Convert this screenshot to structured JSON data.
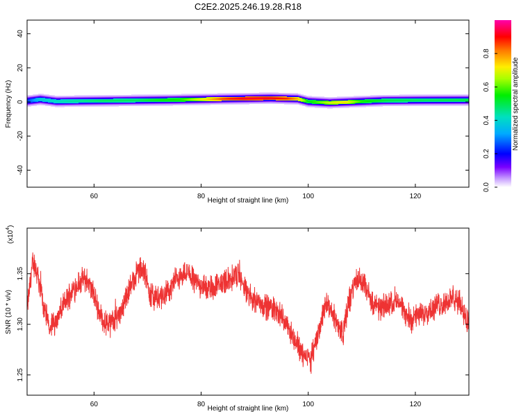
{
  "title": "C2E2.2025.246.19.28.R18",
  "chart_data": [
    {
      "type": "heatmap",
      "xlabel": "Height of straight line (km)",
      "ylabel": "Frequency (Hz)",
      "xlim": [
        47.5,
        130
      ],
      "ylim": [
        -50,
        48
      ],
      "x_ticks": [
        60,
        80,
        100,
        120
      ],
      "y_ticks": [
        -40,
        -20,
        0,
        20,
        40
      ],
      "band_center_hz": [
        [
          47.5,
          0.5
        ],
        [
          50,
          1.5
        ],
        [
          53,
          0.3
        ],
        [
          57,
          0.5
        ],
        [
          65,
          0.8
        ],
        [
          75,
          1.2
        ],
        [
          85,
          1.8
        ],
        [
          93,
          2.2
        ],
        [
          98,
          1.8
        ],
        [
          100,
          0.2
        ],
        [
          104,
          -0.5
        ],
        [
          108,
          0.0
        ],
        [
          114,
          0.8
        ],
        [
          122,
          1.0
        ],
        [
          130,
          1.1
        ]
      ],
      "peak_amplitude": [
        [
          47.5,
          0.25
        ],
        [
          50,
          0.4
        ],
        [
          55,
          0.45
        ],
        [
          62,
          0.5
        ],
        [
          68,
          0.5
        ],
        [
          72,
          0.55
        ],
        [
          76,
          0.58
        ],
        [
          80,
          0.72
        ],
        [
          84,
          0.88
        ],
        [
          88,
          0.95
        ],
        [
          92,
          0.95
        ],
        [
          96,
          0.9
        ],
        [
          98,
          0.8
        ],
        [
          100,
          0.55
        ],
        [
          104,
          0.7
        ],
        [
          107,
          0.75
        ],
        [
          110,
          0.58
        ],
        [
          115,
          0.52
        ],
        [
          122,
          0.5
        ],
        [
          130,
          0.52
        ]
      ],
      "colorbar": {
        "label": "Normalized spectral amplitude",
        "range": [
          0,
          1
        ],
        "ticks": [
          0.0,
          0.2,
          0.4,
          0.6,
          0.8
        ]
      },
      "grid": false
    },
    {
      "type": "line",
      "xlabel": "Height of straight line (km)",
      "ylabel": "SNR (10 * v/v)",
      "y_multiplier": "(x10",
      "y_multiplier_exp": "4",
      "xlim": [
        47.5,
        130
      ],
      "ylim": [
        1.23,
        1.395
      ],
      "x_ticks": [
        60,
        80,
        100,
        120
      ],
      "y_ticks": [
        1.25,
        1.3,
        1.35
      ],
      "series": [
        {
          "color": "#ee3333",
          "envelope": [
            [
              47.5,
              1.315
            ],
            [
              48.5,
              1.36
            ],
            [
              49.5,
              1.35
            ],
            [
              50.5,
              1.32
            ],
            [
              51.5,
              1.3
            ],
            [
              52.5,
              1.3
            ],
            [
              54,
              1.315
            ],
            [
              55.5,
              1.33
            ],
            [
              57,
              1.34
            ],
            [
              58.5,
              1.345
            ],
            [
              59.5,
              1.335
            ],
            [
              60.5,
              1.32
            ],
            [
              61.5,
              1.305
            ],
            [
              62.5,
              1.3
            ],
            [
              64,
              1.305
            ],
            [
              65.5,
              1.32
            ],
            [
              67,
              1.34
            ],
            [
              68.5,
              1.355
            ],
            [
              69.5,
              1.35
            ],
            [
              70.5,
              1.33
            ],
            [
              72,
              1.325
            ],
            [
              73.5,
              1.33
            ],
            [
              75.5,
              1.345
            ],
            [
              77.5,
              1.35
            ],
            [
              79.5,
              1.34
            ],
            [
              81.5,
              1.335
            ],
            [
              83.5,
              1.34
            ],
            [
              85.5,
              1.345
            ],
            [
              87,
              1.35
            ],
            [
              88.5,
              1.33
            ],
            [
              90,
              1.325
            ],
            [
              92,
              1.318
            ],
            [
              94,
              1.315
            ],
            [
              96,
              1.3
            ],
            [
              97.5,
              1.285
            ],
            [
              99,
              1.27
            ],
            [
              100.5,
              1.265
            ],
            [
              101.5,
              1.285
            ],
            [
              102.5,
              1.305
            ],
            [
              103.5,
              1.32
            ],
            [
              104.5,
              1.31
            ],
            [
              105.5,
              1.3
            ],
            [
              106.5,
              1.29
            ],
            [
              107.5,
              1.32
            ],
            [
              108.5,
              1.34
            ],
            [
              109.5,
              1.345
            ],
            [
              110.5,
              1.34
            ],
            [
              112,
              1.32
            ],
            [
              113.5,
              1.315
            ],
            [
              115,
              1.32
            ],
            [
              116.5,
              1.325
            ],
            [
              118,
              1.31
            ],
            [
              119.5,
              1.305
            ],
            [
              121,
              1.31
            ],
            [
              123,
              1.315
            ],
            [
              125,
              1.32
            ],
            [
              127,
              1.325
            ],
            [
              128.5,
              1.32
            ],
            [
              130,
              1.3
            ]
          ],
          "noise_amplitude": 0.012
        }
      ],
      "grid": false
    }
  ]
}
